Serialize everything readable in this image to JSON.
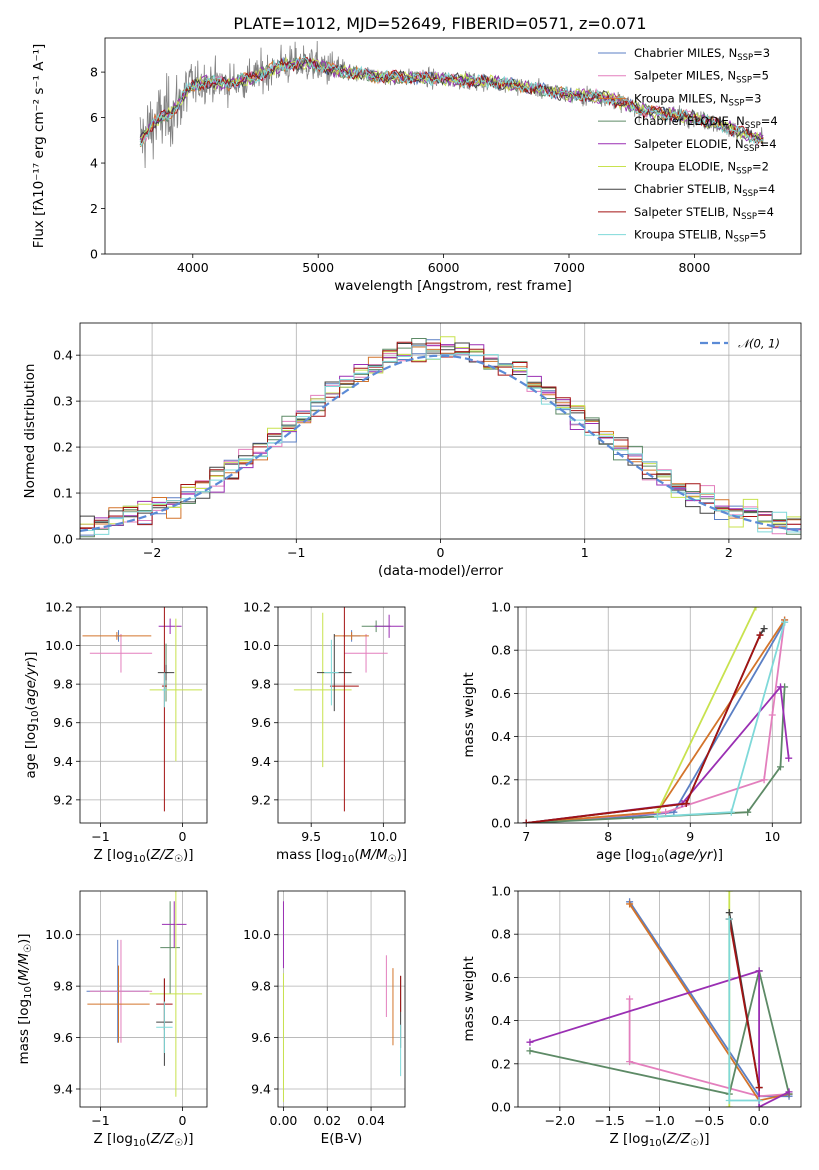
{
  "title": "PLATE=1012, MJD=52649, FIBERID=0571, z=0.071",
  "colors": {
    "chabrier_miles": "#5b7fc4",
    "salpeter_miles": "#e37fbd",
    "kroupa_miles": "#d3742b",
    "chabrier_elodie": "#5d8a66",
    "salpeter_elodie": "#9a2fb3",
    "kroupa_elodie": "#c8e24e",
    "chabrier_stelib": "#404040",
    "salpeter_stelib": "#a31313",
    "kroupa_stelib": "#7fd9d9",
    "data": "#808080",
    "normal_curve": "#5b8bd6"
  },
  "legend": [
    {
      "pre": "Chabrier MILES, N",
      "sub": "SSP",
      "post": "=3",
      "key": "chabrier_miles"
    },
    {
      "pre": "Salpeter MILES, N",
      "sub": "SSP",
      "post": "=5",
      "key": "salpeter_miles"
    },
    {
      "pre": "Kroupa MILES, N",
      "sub": "SSP",
      "post": "=3",
      "key": "kroupa_miles"
    },
    {
      "pre": "Chabrier ELODIE, N",
      "sub": "SSP",
      "post": "=4",
      "key": "chabrier_elodie"
    },
    {
      "pre": "Salpeter ELODIE, N",
      "sub": "SSP",
      "post": "=4",
      "key": "salpeter_elodie"
    },
    {
      "pre": "Kroupa ELODIE, N",
      "sub": "SSP",
      "post": "=2",
      "key": "kroupa_elodie"
    },
    {
      "pre": "Chabrier STELIB, N",
      "sub": "SSP",
      "post": "=4",
      "key": "chabrier_stelib"
    },
    {
      "pre": "Salpeter STELIB, N",
      "sub": "SSP",
      "post": "=4",
      "key": "salpeter_stelib"
    },
    {
      "pre": "Kroupa STELIB, N",
      "sub": "SSP",
      "post": "=5",
      "key": "kroupa_stelib"
    }
  ],
  "chart_data": [
    {
      "id": "spectrum",
      "type": "line",
      "xlabel": "wavelength [Angstrom, rest frame]",
      "ylabel": "Flux [fλ10⁻¹⁷ erg cm⁻² s⁻¹ A⁻¹]",
      "xlim": [
        3300,
        8850
      ],
      "ylim": [
        0,
        9.5
      ],
      "xticks": [
        4000,
        5000,
        6000,
        7000,
        8000
      ],
      "yticks": [
        0,
        2,
        4,
        6,
        8
      ],
      "continuum": [
        [
          3580,
          5.0
        ],
        [
          3700,
          5.8
        ],
        [
          3850,
          6.3
        ],
        [
          3950,
          7.2
        ],
        [
          4100,
          7.6
        ],
        [
          4300,
          7.5
        ],
        [
          4500,
          7.8
        ],
        [
          4700,
          8.3
        ],
        [
          4900,
          8.4
        ],
        [
          5200,
          8.0
        ],
        [
          5500,
          7.8
        ],
        [
          6000,
          7.7
        ],
        [
          6500,
          7.5
        ],
        [
          7000,
          7.0
        ],
        [
          7300,
          6.9
        ],
        [
          7600,
          6.3
        ],
        [
          8000,
          6.0
        ],
        [
          8300,
          5.5
        ],
        [
          8550,
          5.0
        ]
      ],
      "data_wavelength_range": [
        3580,
        8550
      ],
      "legend_position": "upper right",
      "grid": false
    },
    {
      "id": "residuals",
      "type": "histogram",
      "xlabel": "(data-model)/error",
      "ylabel": "Normed distribution",
      "xlim": [
        -2.5,
        2.5
      ],
      "ylim": [
        0,
        0.47
      ],
      "xticks": [
        -2,
        -1,
        0,
        1,
        2
      ],
      "yticks": [
        0.0,
        0.1,
        0.2,
        0.3,
        0.4
      ],
      "bins": 50,
      "bin_range": [
        -2.5,
        2.5
      ],
      "reference_curve": {
        "name": "𝒩(0, 1)",
        "mean": 0,
        "sigma": 1,
        "style": "dashed"
      },
      "legend_position": "upper right",
      "grid": true
    },
    {
      "id": "age_vs_Z",
      "type": "errorbar",
      "xlabel": "Z [log10(Z/Z☉)]",
      "ylabel": "age [log10(age/yr)]",
      "xlim": [
        -1.25,
        0.3
      ],
      "ylim": [
        9.08,
        10.2
      ],
      "xticks": [
        -1,
        0
      ],
      "yticks": [
        9.2,
        9.4,
        9.6,
        9.8,
        10.0,
        10.2
      ],
      "grid": true,
      "points": [
        {
          "key": "chabrier_miles",
          "x": -0.78,
          "y": 10.05,
          "xerr": 0.04,
          "yerr": 0.03
        },
        {
          "key": "salpeter_miles",
          "x": -0.75,
          "y": 9.96,
          "xerr": 0.38,
          "yerr": 0.1
        },
        {
          "key": "kroupa_miles",
          "x": -0.8,
          "y": 10.05,
          "xerr": 0.42,
          "yerr": 0.02
        },
        {
          "key": "chabrier_elodie",
          "x": -0.2,
          "y": 9.86,
          "xerr": 0.02,
          "yerr": 0.15
        },
        {
          "key": "salpeter_elodie",
          "x": -0.15,
          "y": 10.1,
          "xerr": 0.14,
          "yerr": 0.04
        },
        {
          "key": "kroupa_elodie",
          "x": -0.08,
          "y": 9.77,
          "xerr": 0.32,
          "yerr": 0.37
        },
        {
          "key": "chabrier_stelib",
          "x": -0.2,
          "y": 9.86,
          "xerr": 0.1,
          "yerr": 0.04
        },
        {
          "key": "salpeter_stelib",
          "x": -0.22,
          "y": 9.79,
          "xerr": 0.03,
          "yerr": 0.65
        },
        {
          "key": "kroupa_stelib",
          "x": -0.22,
          "y": 9.77,
          "xerr": 0.03,
          "yerr": 0.09
        }
      ]
    },
    {
      "id": "age_vs_mass",
      "type": "errorbar",
      "xlabel": "mass [log10(M/M☉)]",
      "ylabel": "",
      "xlim": [
        9.27,
        10.15
      ],
      "ylim": [
        9.08,
        10.2
      ],
      "xticks": [
        9.5,
        10.0
      ],
      "yticks": [
        9.2,
        9.4,
        9.6,
        9.8,
        10.0,
        10.2
      ],
      "grid": true,
      "points": [
        {
          "key": "chabrier_miles",
          "x": 9.78,
          "y": 10.05,
          "xerr": 0.06,
          "yerr": 0.03
        },
        {
          "key": "salpeter_miles",
          "x": 9.88,
          "y": 9.96,
          "xerr": 0.15,
          "yerr": 0.1
        },
        {
          "key": "kroupa_miles",
          "x": 9.78,
          "y": 10.05,
          "xerr": 0.12,
          "yerr": 0.02
        },
        {
          "key": "chabrier_elodie",
          "x": 9.95,
          "y": 10.1,
          "xerr": 0.1,
          "yerr": 0.03
        },
        {
          "key": "salpeter_elodie",
          "x": 10.04,
          "y": 10.1,
          "xerr": 0.1,
          "yerr": 0.06
        },
        {
          "key": "kroupa_elodie",
          "x": 9.58,
          "y": 9.77,
          "xerr": 0.2,
          "yerr": 0.4
        },
        {
          "key": "chabrier_stelib",
          "x": 9.66,
          "y": 9.86,
          "xerr": 0.12,
          "yerr": 0.2
        },
        {
          "key": "salpeter_stelib",
          "x": 9.73,
          "y": 9.79,
          "xerr": 0.1,
          "yerr": 0.65
        },
        {
          "key": "kroupa_stelib",
          "x": 9.64,
          "y": 9.86,
          "xerr": 0.05,
          "yerr": 0.17
        }
      ]
    },
    {
      "id": "weight_vs_age",
      "type": "line",
      "xlabel": "age [log10(age/yr)]",
      "ylabel": "mass weight",
      "xlim": [
        6.9,
        10.35
      ],
      "ylim": [
        0,
        1.0
      ],
      "xticks": [
        7,
        8,
        9,
        10
      ],
      "yticks": [
        0.0,
        0.2,
        0.4,
        0.6,
        0.8,
        1.0
      ],
      "grid": true,
      "series": [
        {
          "key": "chabrier_miles",
          "points": [
            [
              7.0,
              0.0
            ],
            [
              8.3,
              0.03
            ],
            [
              8.8,
              0.05
            ],
            [
              10.15,
              0.93
            ]
          ]
        },
        {
          "key": "salpeter_miles",
          "points": [
            [
              7.0,
              0.0
            ],
            [
              8.7,
              0.05
            ],
            [
              9.9,
              0.2
            ],
            [
              10.0,
              0.5
            ],
            [
              10.15,
              0.94
            ]
          ]
        },
        {
          "key": "kroupa_miles",
          "points": [
            [
              7.0,
              0.0
            ],
            [
              8.6,
              0.05
            ],
            [
              10.15,
              0.94
            ]
          ]
        },
        {
          "key": "chabrier_elodie",
          "points": [
            [
              7.0,
              0.0
            ],
            [
              9.7,
              0.05
            ],
            [
              10.1,
              0.26
            ],
            [
              10.15,
              0.63
            ]
          ]
        },
        {
          "key": "salpeter_elodie",
          "points": [
            [
              7.0,
              0.0
            ],
            [
              8.9,
              0.09
            ],
            [
              10.1,
              0.63
            ],
            [
              10.2,
              0.3
            ]
          ]
        },
        {
          "key": "kroupa_elodie",
          "points": [
            [
              8.6,
              0.05
            ],
            [
              9.8,
              1.0
            ]
          ]
        },
        {
          "key": "chabrier_stelib",
          "points": [
            [
              7.0,
              0.0
            ],
            [
              8.95,
              0.09
            ],
            [
              9.85,
              0.87
            ],
            [
              9.9,
              0.9
            ]
          ]
        },
        {
          "key": "salpeter_stelib",
          "points": [
            [
              7.0,
              0.0
            ],
            [
              8.95,
              0.09
            ],
            [
              9.85,
              0.87
            ]
          ]
        },
        {
          "key": "kroupa_stelib",
          "points": [
            [
              8.6,
              0.03
            ],
            [
              9.5,
              0.05
            ],
            [
              10.15,
              0.93
            ]
          ]
        }
      ]
    },
    {
      "id": "mass_vs_Z",
      "type": "errorbar",
      "xlabel": "Z [log10(Z/Z☉)]",
      "ylabel": "mass [log10(M/M☉)]",
      "xlim": [
        -1.25,
        0.3
      ],
      "ylim": [
        9.33,
        10.17
      ],
      "xticks": [
        -1,
        0
      ],
      "yticks": [
        9.4,
        9.6,
        9.8,
        10.0
      ],
      "grid": true,
      "points": [
        {
          "key": "chabrier_miles",
          "x": -0.79,
          "y": 9.78,
          "xerr": 0.38,
          "yerr": 0.2
        },
        {
          "key": "salpeter_miles",
          "x": -0.75,
          "y": 9.78,
          "xerr": 0.38,
          "yerr": 0.2
        },
        {
          "key": "kroupa_miles",
          "x": -0.78,
          "y": 9.73,
          "xerr": 0.38,
          "yerr": 0.15
        },
        {
          "key": "chabrier_elodie",
          "x": -0.15,
          "y": 9.95,
          "xerr": 0.12,
          "yerr": 0.18
        },
        {
          "key": "salpeter_elodie",
          "x": -0.1,
          "y": 10.04,
          "xerr": 0.15,
          "yerr": 0.09
        },
        {
          "key": "kroupa_elodie",
          "x": -0.08,
          "y": 9.77,
          "xerr": 0.32,
          "yerr": 0.4
        },
        {
          "key": "chabrier_stelib",
          "x": -0.22,
          "y": 9.66,
          "xerr": 0.1,
          "yerr": 0.17
        },
        {
          "key": "salpeter_stelib",
          "x": -0.22,
          "y": 9.73,
          "xerr": 0.1,
          "yerr": 0.1
        },
        {
          "key": "kroupa_stelib",
          "x": -0.22,
          "y": 9.64,
          "xerr": 0.1,
          "yerr": 0.1
        }
      ]
    },
    {
      "id": "mass_vs_ebv",
      "type": "errorbar",
      "xlabel": "E(B-V)",
      "ylabel": "",
      "xlim": [
        -0.0025,
        0.0555
      ],
      "ylim": [
        9.33,
        10.17
      ],
      "xticks": [
        0.0,
        0.02,
        0.04
      ],
      "yticks": [
        9.4,
        9.6,
        9.8,
        10.0
      ],
      "grid": true,
      "points": [
        {
          "key": "salpeter_miles",
          "x": 0.047,
          "y": 9.8,
          "xerr": 0.0,
          "yerr": 0.12
        },
        {
          "key": "kroupa_miles",
          "x": 0.05,
          "y": 9.72,
          "xerr": 0.0,
          "yerr": 0.15
        },
        {
          "key": "chabrier_stelib",
          "x": 0.0535,
          "y": 9.7,
          "xerr": 0.0,
          "yerr": 0.14
        },
        {
          "key": "salpeter_stelib",
          "x": 0.0535,
          "y": 9.77,
          "xerr": 0.0,
          "yerr": 0.07
        },
        {
          "key": "kroupa_stelib",
          "x": 0.0535,
          "y": 9.55,
          "xerr": 0.0,
          "yerr": 0.1
        },
        {
          "key": "salpeter_elodie",
          "x": 0.0,
          "y": 10.0,
          "xerr": 0.0,
          "yerr": 0.13
        },
        {
          "key": "kroupa_elodie",
          "x": 0.0,
          "y": 9.6,
          "xerr": 0.0,
          "yerr": 0.25
        }
      ]
    },
    {
      "id": "weight_vs_Z",
      "type": "line",
      "xlabel": "Z [log10(Z/Z☉)]",
      "ylabel": "mass weight",
      "xlim": [
        -2.42,
        0.42
      ],
      "ylim": [
        0,
        1.0
      ],
      "xticks": [
        -2.0,
        -1.5,
        -1.0,
        -0.5,
        0.0
      ],
      "yticks": [
        0.0,
        0.2,
        0.4,
        0.6,
        0.8,
        1.0
      ],
      "grid": true,
      "series": [
        {
          "key": "chabrier_miles",
          "points": [
            [
              -1.3,
              0.95
            ],
            [
              0.0,
              0.05
            ],
            [
              0.3,
              0.05
            ]
          ]
        },
        {
          "key": "salpeter_miles",
          "points": [
            [
              -1.3,
              0.5
            ],
            [
              -1.3,
              0.21
            ],
            [
              0.0,
              0.05
            ],
            [
              0.3,
              0.06
            ]
          ]
        },
        {
          "key": "kroupa_miles",
          "points": [
            [
              -1.3,
              0.94
            ],
            [
              0.0,
              0.03
            ],
            [
              0.3,
              0.06
            ]
          ]
        },
        {
          "key": "chabrier_elodie",
          "points": [
            [
              -2.3,
              0.26
            ],
            [
              -0.3,
              0.06
            ],
            [
              0.0,
              0.63
            ],
            [
              0.3,
              0.06
            ]
          ]
        },
        {
          "key": "salpeter_elodie",
          "points": [
            [
              -2.3,
              0.3
            ],
            [
              0.0,
              0.63
            ],
            [
              0.0,
              0.0
            ],
            [
              0.3,
              0.07
            ]
          ]
        },
        {
          "key": "kroupa_elodie",
          "points": [
            [
              -0.3,
              1.0
            ],
            [
              -0.3,
              0.0
            ]
          ]
        },
        {
          "key": "chabrier_stelib",
          "points": [
            [
              -0.3,
              0.9
            ],
            [
              0.0,
              0.09
            ]
          ]
        },
        {
          "key": "salpeter_stelib",
          "points": [
            [
              -0.3,
              0.87
            ],
            [
              0.0,
              0.09
            ]
          ]
        },
        {
          "key": "kroupa_stelib",
          "points": [
            [
              -0.3,
              0.87
            ],
            [
              -0.3,
              0.03
            ],
            [
              0.0,
              0.03
            ]
          ]
        }
      ]
    }
  ]
}
